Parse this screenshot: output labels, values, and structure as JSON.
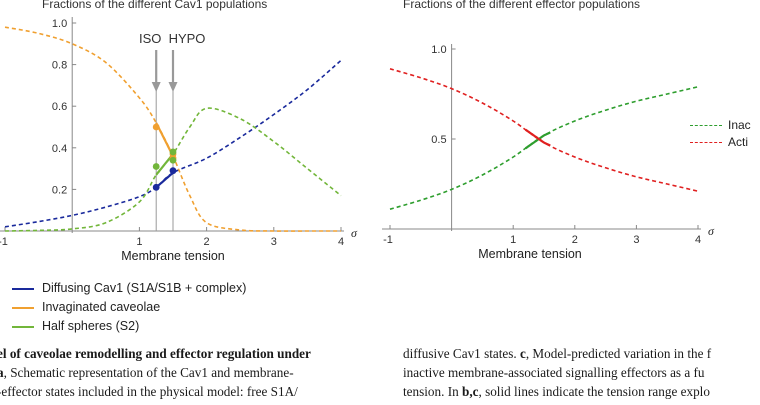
{
  "panel_b": {
    "title": "Fractions of the different Cav1 populations",
    "annotations": {
      "iso": "ISO",
      "hypo": "HYPO"
    },
    "legend": [
      {
        "label": "Diffusing Cav1 (S1A/S1B + complex)",
        "color": "#1a2a9c"
      },
      {
        "label": "Invaginated caveolae",
        "color": "#f0a030"
      },
      {
        "label": "Half spheres (S2)",
        "color": "#72b63a"
      }
    ]
  },
  "panel_c": {
    "title": "Fractions of the different effector populations",
    "legend": [
      {
        "label": "Inac",
        "color": "#2e9e2e"
      },
      {
        "label": "Acti",
        "color": "#e02020"
      }
    ]
  },
  "caption_left": {
    "line1_bold": "el of caveolae remodelling and effector regulation under",
    "line2_bold": "a",
    "line2": ", Schematic representation of the Cav1 and membrane-",
    "line3": "-effector states included in the physical model: free S1A/"
  },
  "caption_right": {
    "line1": "diffusive Cav1 states. ",
    "line1_bold": "c",
    "line1_tail": ", Model-predicted variation in the f",
    "line2": "inactive membrane-associated signalling effectors as a fu",
    "line3a": "tension. In ",
    "line3_bold": "b,c",
    "line3b": ", solid lines indicate the tension range explo"
  },
  "chart_data": [
    {
      "type": "line",
      "title": "Fractions of the different Cav1 populations",
      "xlabel": "Membrane tension",
      "x_symbol": "σ",
      "xlim": [
        -1,
        4
      ],
      "ylim": [
        0,
        1.0
      ],
      "xticks": [
        "-1",
        "1",
        "2",
        "3",
        "4"
      ],
      "yticks": [
        "0.2",
        "0.4",
        "0.6",
        "0.8",
        "1.0"
      ],
      "vlines": [
        {
          "label": "ISO",
          "x": 1.25
        },
        {
          "label": "HYPO",
          "x": 1.5
        }
      ],
      "series": [
        {
          "name": "Diffusing Cav1 (S1A/S1B + complex)",
          "color": "#1a2a9c",
          "x": [
            -1,
            -0.5,
            0,
            0.5,
            1,
            1.25,
            1.5,
            2,
            2.5,
            3,
            3.5,
            4
          ],
          "y": [
            0.02,
            0.045,
            0.075,
            0.115,
            0.165,
            0.21,
            0.28,
            0.35,
            0.45,
            0.56,
            0.68,
            0.82
          ]
        },
        {
          "name": "Invaginated caveolae",
          "color": "#f0a030",
          "x": [
            -1,
            -0.5,
            0,
            0.5,
            1,
            1.25,
            1.5,
            1.75,
            2,
            2.5,
            3,
            3.5,
            4
          ],
          "y": [
            0.98,
            0.95,
            0.9,
            0.81,
            0.64,
            0.52,
            0.36,
            0.17,
            0.04,
            0.005,
            0,
            0,
            0
          ]
        },
        {
          "name": "Half spheres (S2)",
          "color": "#72b63a",
          "x": [
            -1,
            -0.5,
            0,
            0.5,
            1,
            1.25,
            1.5,
            1.75,
            2,
            2.5,
            3,
            3.5,
            4
          ],
          "y": [
            0.0,
            0.003,
            0.01,
            0.04,
            0.14,
            0.27,
            0.37,
            0.5,
            0.59,
            0.54,
            0.43,
            0.3,
            0.17
          ]
        }
      ],
      "markers": [
        {
          "series": 0,
          "x": 1.25,
          "y": 0.21
        },
        {
          "series": 0,
          "x": 1.5,
          "y": 0.29
        },
        {
          "series": 1,
          "x": 1.25,
          "y": 0.5
        },
        {
          "series": 1,
          "x": 1.5,
          "y": 0.37
        },
        {
          "series": 1,
          "x": 1.5,
          "y": 0.35
        },
        {
          "series": 2,
          "x": 1.25,
          "y": 0.31
        },
        {
          "series": 2,
          "x": 1.5,
          "y": 0.38
        },
        {
          "series": 2,
          "x": 1.5,
          "y": 0.34
        }
      ]
    },
    {
      "type": "line",
      "title": "Fractions of the different effector populations",
      "xlabel": "Membrane tension",
      "x_symbol": "σ",
      "xlim": [
        -1,
        4
      ],
      "ylim": [
        0,
        1.0
      ],
      "xticks": [
        "-1",
        "1",
        "2",
        "3",
        "4"
      ],
      "yticks": [
        "0.5",
        "1.0"
      ],
      "series": [
        {
          "name": "Inac",
          "color": "#2e9e2e",
          "x": [
            -1,
            -0.5,
            0,
            0.5,
            1,
            1.5,
            2,
            2.5,
            3,
            3.5,
            4
          ],
          "y": [
            0.11,
            0.16,
            0.22,
            0.3,
            0.4,
            0.52,
            0.6,
            0.66,
            0.71,
            0.75,
            0.79
          ]
        },
        {
          "name": "Acti",
          "color": "#e02020",
          "x": [
            -1,
            -0.5,
            0,
            0.5,
            1,
            1.5,
            2,
            2.5,
            3,
            3.5,
            4
          ],
          "y": [
            0.89,
            0.84,
            0.78,
            0.7,
            0.6,
            0.48,
            0.4,
            0.34,
            0.29,
            0.25,
            0.21
          ]
        }
      ]
    }
  ]
}
